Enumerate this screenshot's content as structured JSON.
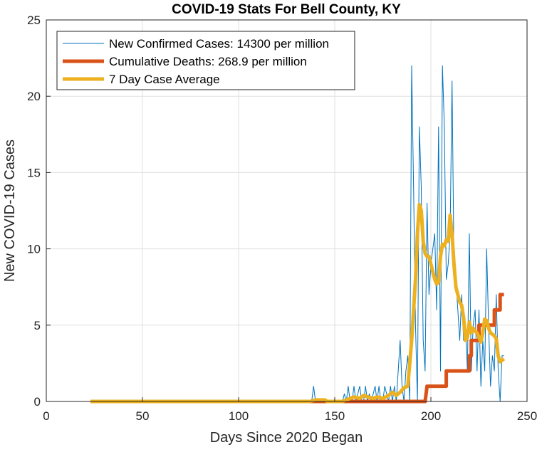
{
  "chart_data": {
    "type": "line",
    "title": "COVID-19 Stats For Bell County, KY",
    "xlabel": "Days Since 2020 Began",
    "ylabel": "New COVID-19 Cases",
    "xlim": [
      0,
      250
    ],
    "ylim": [
      0,
      25
    ],
    "xticks": [
      "0",
      "50",
      "100",
      "150",
      "200",
      "250"
    ],
    "yticks": [
      "0",
      "5",
      "10",
      "15",
      "20",
      "25"
    ],
    "grid": true,
    "legend_position": "top-left",
    "series": [
      {
        "name": "New Confirmed Cases: 14300 per million",
        "color": "#0072BD",
        "points": [
          [
            23,
            0
          ],
          [
            137,
            0
          ],
          [
            138,
            0
          ],
          [
            139,
            1
          ],
          [
            140,
            0
          ],
          [
            154,
            0
          ],
          [
            155,
            0.5
          ],
          [
            156,
            0
          ],
          [
            157,
            1
          ],
          [
            158,
            0
          ],
          [
            159,
            0
          ],
          [
            160,
            1
          ],
          [
            161,
            0
          ],
          [
            162,
            0.5
          ],
          [
            163,
            1
          ],
          [
            164,
            0
          ],
          [
            165,
            0
          ],
          [
            166,
            1
          ],
          [
            167,
            0
          ],
          [
            168,
            0.5
          ],
          [
            169,
            0
          ],
          [
            171,
            1
          ],
          [
            172,
            0
          ],
          [
            173,
            1
          ],
          [
            174,
            0
          ],
          [
            175,
            0
          ],
          [
            176,
            1
          ],
          [
            177,
            0.5
          ],
          [
            178,
            0
          ],
          [
            179,
            1
          ],
          [
            180,
            0
          ],
          [
            181,
            1
          ],
          [
            182,
            0
          ],
          [
            183,
            2
          ],
          [
            184,
            4
          ],
          [
            185,
            1
          ],
          [
            186,
            0
          ],
          [
            187,
            2
          ],
          [
            188,
            3
          ],
          [
            189,
            0
          ],
          [
            190,
            22
          ],
          [
            191,
            14
          ],
          [
            192,
            5
          ],
          [
            193,
            0
          ],
          [
            194,
            18
          ],
          [
            195,
            14
          ],
          [
            196,
            4
          ],
          [
            197,
            2
          ],
          [
            198,
            13
          ],
          [
            199,
            7
          ],
          [
            200,
            9
          ],
          [
            201,
            10
          ],
          [
            202,
            11
          ],
          [
            203,
            6
          ],
          [
            204,
            18
          ],
          [
            205,
            2
          ],
          [
            206,
            22
          ],
          [
            207,
            18
          ],
          [
            208,
            8
          ],
          [
            209,
            9
          ],
          [
            210,
            11
          ],
          [
            211,
            21
          ],
          [
            212,
            9
          ],
          [
            213,
            8
          ],
          [
            214,
            6
          ],
          [
            215,
            4
          ],
          [
            216,
            7
          ],
          [
            217,
            4
          ],
          [
            218,
            5
          ],
          [
            219,
            2
          ],
          [
            220,
            11
          ],
          [
            221,
            2
          ],
          [
            222,
            5
          ],
          [
            223,
            6
          ],
          [
            224,
            2
          ],
          [
            225,
            6
          ],
          [
            226,
            1
          ],
          [
            227,
            4
          ],
          [
            228,
            2
          ],
          [
            229,
            10
          ],
          [
            230,
            5
          ],
          [
            231,
            1
          ],
          [
            232,
            3
          ],
          [
            233,
            2
          ],
          [
            234,
            7
          ],
          [
            235,
            2
          ],
          [
            236,
            0
          ],
          [
            237,
            3
          ],
          [
            238,
            3
          ]
        ]
      },
      {
        "name": "Cumulative Deaths: 268.9 per million",
        "color": "#D95319",
        "points": [
          [
            23,
            0
          ],
          [
            197,
            0
          ],
          [
            198,
            1
          ],
          [
            208,
            1
          ],
          [
            208,
            2
          ],
          [
            220,
            2
          ],
          [
            220,
            3
          ],
          [
            221,
            3
          ],
          [
            221,
            4
          ],
          [
            225,
            4
          ],
          [
            225,
            5
          ],
          [
            233,
            5
          ],
          [
            233,
            6
          ],
          [
            236,
            6
          ],
          [
            236,
            7
          ],
          [
            238,
            7
          ]
        ]
      },
      {
        "name": "7 Day Case Average",
        "color": "#EDB120",
        "points": [
          [
            23,
            0
          ],
          [
            137,
            0
          ],
          [
            140,
            0.1
          ],
          [
            145,
            0.1
          ],
          [
            146,
            0
          ],
          [
            154,
            0
          ],
          [
            156,
            0.1
          ],
          [
            160,
            0.3
          ],
          [
            163,
            0.2
          ],
          [
            165,
            0.4
          ],
          [
            167,
            0.3
          ],
          [
            170,
            0.2
          ],
          [
            172,
            0.3
          ],
          [
            175,
            0.2
          ],
          [
            178,
            0.4
          ],
          [
            180,
            0.6
          ],
          [
            182,
            0.4
          ],
          [
            184,
            0.6
          ],
          [
            186,
            0.9
          ],
          [
            188,
            1.0
          ],
          [
            190,
            4.0
          ],
          [
            192,
            8.0
          ],
          [
            193,
            11.0
          ],
          [
            194,
            12.9
          ],
          [
            195,
            12.5
          ],
          [
            196,
            10.5
          ],
          [
            197,
            9.7
          ],
          [
            198,
            9.5
          ],
          [
            199,
            9.5
          ],
          [
            200,
            9.0
          ],
          [
            201,
            8.5
          ],
          [
            202,
            8.0
          ],
          [
            203,
            7.7
          ],
          [
            204,
            7.8
          ],
          [
            205,
            9.5
          ],
          [
            206,
            10.3
          ],
          [
            207,
            10.2
          ],
          [
            208,
            10.6
          ],
          [
            209,
            10.5
          ],
          [
            210,
            12.2
          ],
          [
            211,
            11.0
          ],
          [
            212,
            9.0
          ],
          [
            213,
            7.5
          ],
          [
            214,
            7.0
          ],
          [
            215,
            6.5
          ],
          [
            216,
            6.3
          ],
          [
            217,
            5.5
          ],
          [
            218,
            4.0
          ],
          [
            219,
            4.2
          ],
          [
            220,
            5.2
          ],
          [
            221,
            4.5
          ],
          [
            222,
            4.8
          ],
          [
            223,
            4.6
          ],
          [
            224,
            4.5
          ],
          [
            225,
            4.2
          ],
          [
            226,
            3.9
          ],
          [
            227,
            4.5
          ],
          [
            228,
            5.4
          ],
          [
            229,
            5.3
          ],
          [
            230,
            4.8
          ],
          [
            231,
            4.5
          ],
          [
            232,
            4.4
          ],
          [
            233,
            4.3
          ],
          [
            234,
            4.1
          ],
          [
            235,
            3.0
          ],
          [
            236,
            2.6
          ],
          [
            237,
            2.7
          ],
          [
            238,
            2.8
          ]
        ]
      }
    ]
  }
}
